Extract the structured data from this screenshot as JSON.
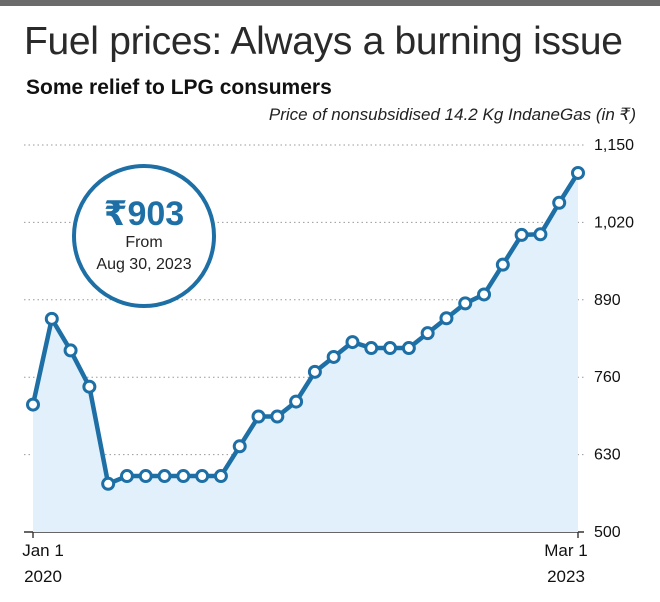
{
  "header": {
    "title": "Fuel prices: Always a burning issue",
    "subtitle": "Some relief to LPG consumers",
    "unit_note": "Price of nonsubsidised 14.2 Kg IndaneGas (in ₹)"
  },
  "callout": {
    "price": "₹903",
    "line1": "From",
    "line2": "Aug 30, 2023"
  },
  "colors": {
    "line": "#1d6fa5",
    "fill": "#e1f0fa",
    "grid": "#9a9a9a",
    "axis": "#333333"
  },
  "chart_data": {
    "type": "area",
    "title": "Some relief to LPG consumers",
    "ylabel": "Price of nonsubsidised 14.2 Kg IndaneGas (in ₹)",
    "ylim": [
      500,
      1150
    ],
    "yticks": [
      500,
      630,
      760,
      890,
      1020,
      1150
    ],
    "ytick_labels": [
      "500",
      "630",
      "760",
      "890",
      "1,020",
      "1,150"
    ],
    "x_start_label": [
      "Jan 1",
      "2020"
    ],
    "x_end_label": [
      "Mar 1",
      "2023"
    ],
    "grid": true,
    "series": [
      {
        "values": [
          714,
          858,
          805,
          744,
          581,
          594,
          594,
          594,
          594,
          594,
          594,
          644,
          694,
          694,
          719,
          769,
          794,
          819,
          809,
          809,
          809,
          834,
          859,
          884,
          899,
          949,
          999,
          1000,
          1053,
          1103
        ]
      }
    ]
  }
}
